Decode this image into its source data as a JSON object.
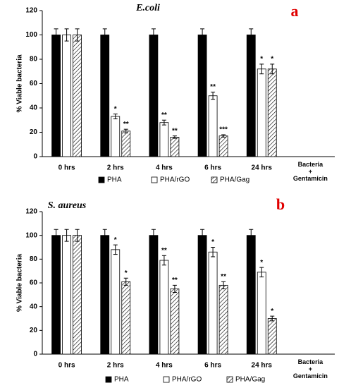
{
  "chart_data": [
    {
      "type": "bar",
      "title": "E.coli",
      "panel": "a",
      "y_label": "% Viable bacteria",
      "categories": [
        "0 hrs",
        "2 hrs",
        "4 hrs",
        "6 hrs",
        "24 hrs",
        "Bacteria + Gentamicin"
      ],
      "series": [
        {
          "name": "PHA",
          "color": "#000000",
          "values": [
            100,
            100,
            100,
            100,
            100,
            null
          ],
          "errors": [
            5,
            5,
            5,
            5,
            5,
            null
          ]
        },
        {
          "name": "PHA/rGO",
          "color": "#ffffff",
          "values": [
            100,
            33,
            28,
            50,
            72,
            null
          ],
          "errors": [
            5,
            2,
            2,
            3,
            4,
            null
          ],
          "annotations": [
            null,
            "*",
            "**",
            "**",
            "*",
            null
          ]
        },
        {
          "name": "PHA/Gag",
          "color": "#ffffff",
          "hatch": true,
          "values": [
            100,
            21,
            16,
            17,
            72,
            null
          ],
          "errors": [
            5,
            1.5,
            1,
            1,
            4,
            null
          ],
          "annotations": [
            null,
            "**",
            "**",
            "***",
            "*",
            null
          ]
        }
      ],
      "ylim": [
        0,
        120
      ],
      "yticks": [
        0,
        20,
        40,
        60,
        80,
        100,
        120
      ],
      "legend": "bottom"
    },
    {
      "type": "bar",
      "title": "S. aureus",
      "panel": "b",
      "y_label": "% Viable bacteria",
      "categories": [
        "0 hrs",
        "2 hrs",
        "4 hrs",
        "6 hrs",
        "24 hrs",
        "Bacteria + Gentamicin"
      ],
      "series": [
        {
          "name": "PHA",
          "color": "#000000",
          "values": [
            100,
            100,
            100,
            100,
            100,
            null
          ],
          "errors": [
            5,
            5,
            5,
            5,
            5,
            null
          ]
        },
        {
          "name": "PHA/rGO",
          "color": "#ffffff",
          "values": [
            100,
            88,
            79,
            86,
            69,
            null
          ],
          "errors": [
            5,
            4,
            4,
            4,
            4,
            null
          ],
          "annotations": [
            null,
            "*",
            "**",
            "*",
            "*",
            null
          ]
        },
        {
          "name": "PHA/Gag",
          "color": "#ffffff",
          "hatch": true,
          "values": [
            100,
            61,
            55,
            58,
            30,
            null
          ],
          "errors": [
            5,
            3,
            3,
            3,
            2,
            null
          ],
          "annotations": [
            null,
            "*",
            "**",
            "**",
            "*",
            null
          ]
        }
      ],
      "ylim": [
        0,
        120
      ],
      "yticks": [
        0,
        20,
        40,
        60,
        80,
        100,
        120
      ],
      "legend": "bottom"
    }
  ]
}
